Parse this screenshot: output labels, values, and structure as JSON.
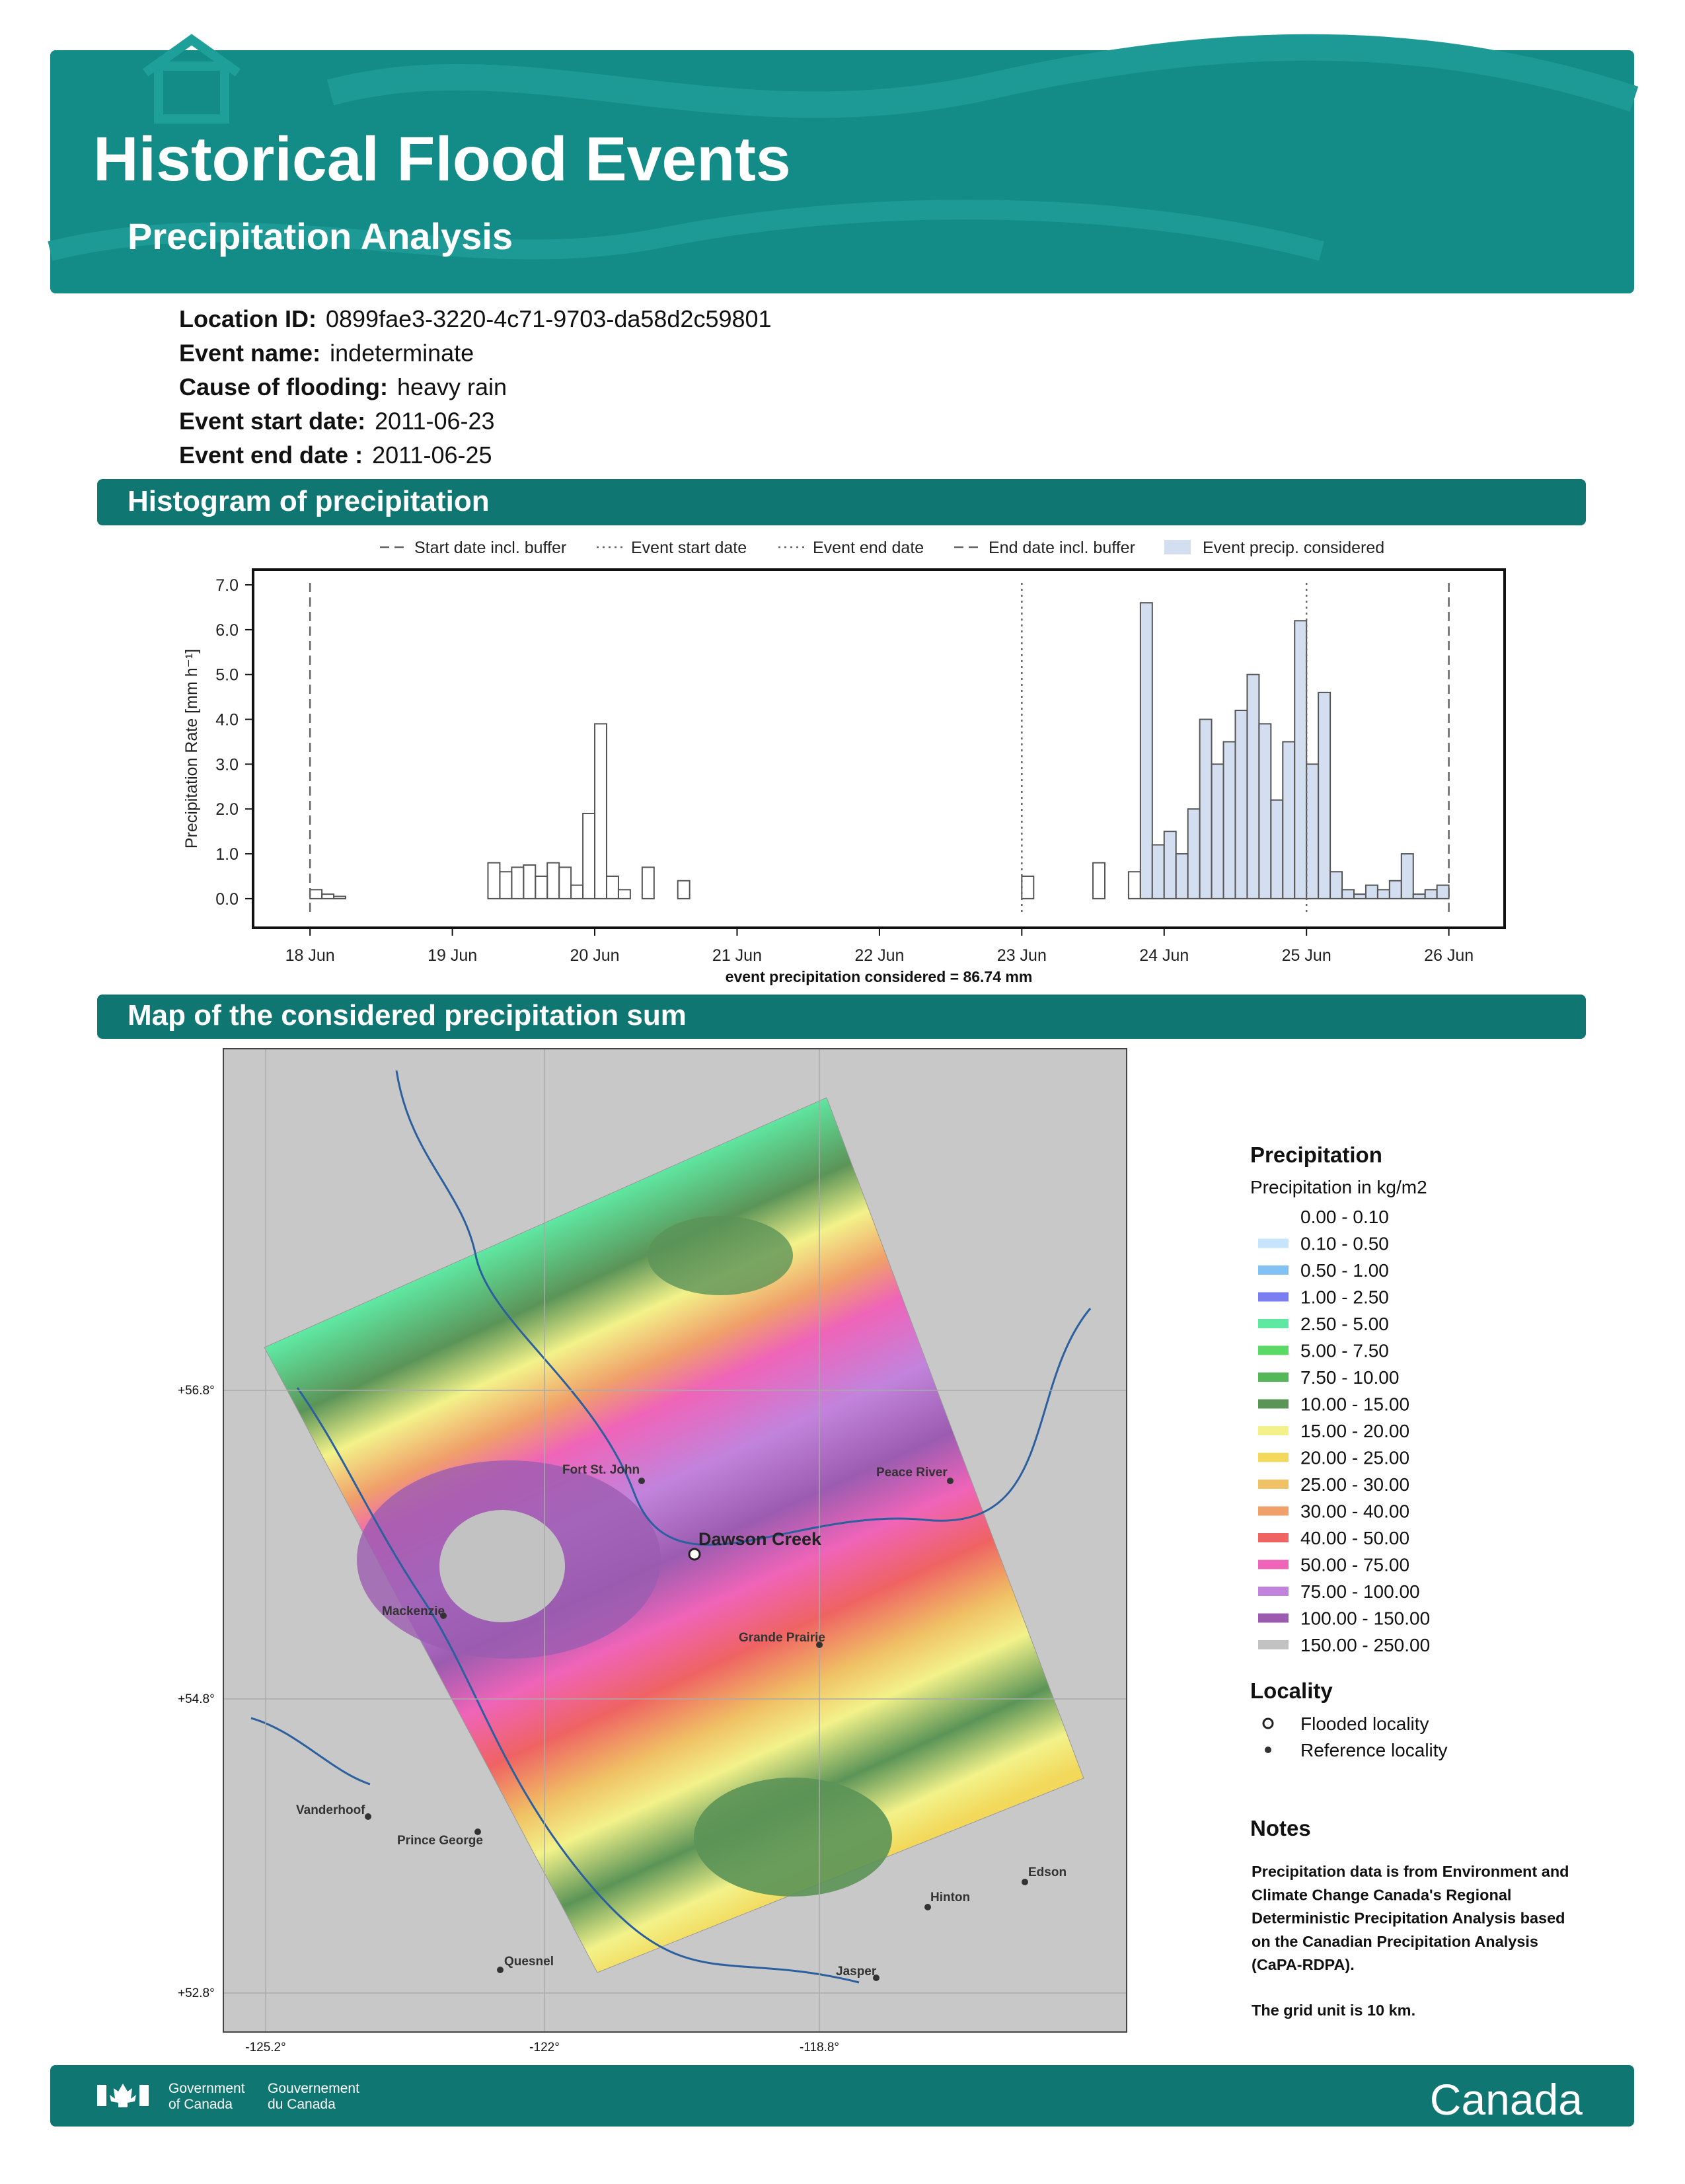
{
  "header": {
    "title": "Historical Flood Events",
    "subtitle": "Precipitation Analysis"
  },
  "info": [
    {
      "label": "Location ID:",
      "value": "0899fae3-3220-4c71-9703-da58d2c59801"
    },
    {
      "label": "Event name:",
      "value": "indeterminate"
    },
    {
      "label": "Cause of flooding:",
      "value": "heavy rain"
    },
    {
      "label": "Event start date:",
      "value": "2011-06-23"
    },
    {
      "label": "Event end date :",
      "value": "2011-06-25"
    }
  ],
  "sections": [
    "Histogram of precipitation",
    "Map of the considered precipitation sum"
  ],
  "chart_data": {
    "type": "histogram",
    "y_label": "Precipitation Rate [mm h⁻¹]",
    "x_label": "event precipitation considered = 86.74 mm",
    "bins": [
      0,
      2,
      4,
      6,
      8,
      10,
      12,
      14,
      16,
      18,
      20,
      22,
      24,
      26,
      28,
      30,
      32,
      34,
      36,
      38,
      40,
      42,
      44,
      46,
      48,
      50,
      52,
      54,
      56,
      58,
      60,
      62,
      64,
      66,
      68,
      70,
      72,
      74,
      76,
      78,
      80,
      82,
      84,
      86,
      88,
      90,
      92,
      94,
      96,
      98,
      100,
      102,
      104,
      106,
      108,
      110,
      112,
      114,
      116,
      118,
      120,
      122,
      124,
      126,
      128,
      130,
      132,
      134,
      136,
      138,
      140,
      142,
      144,
      146,
      148,
      150,
      152,
      154,
      156,
      158,
      160,
      162,
      164,
      166,
      168,
      170,
      172,
      174,
      176,
      178,
      180,
      182,
      184,
      186,
      188,
      190,
      192
    ],
    "counts": [
      0.2,
      0.1,
      0.05,
      0,
      0,
      0,
      0,
      0,
      0,
      0,
      0,
      0,
      0,
      0,
      0,
      0.8,
      0.6,
      0.7,
      0.75,
      0.5,
      0.8,
      0.7,
      0.3,
      1.9,
      3.9,
      0.5,
      0.2,
      0,
      0.7,
      0,
      0,
      0.4,
      0,
      0,
      0,
      0,
      0,
      0,
      0,
      0,
      0,
      0,
      0,
      0,
      0,
      0,
      0,
      0,
      0,
      0,
      0,
      0,
      0,
      0,
      0,
      0,
      0,
      0,
      0,
      0,
      0.5,
      0,
      0,
      0,
      0,
      0,
      0.8,
      0,
      0,
      0.6,
      6.6,
      1.2,
      1.5,
      1.0,
      2.0,
      4.0,
      3.0,
      3.5,
      4.2,
      5.0,
      3.9,
      2.2,
      3.5,
      6.2,
      3.0,
      4.6,
      0.6,
      0.2,
      0.1,
      0.3,
      0.2,
      0.4,
      1.0,
      0.1,
      0.2,
      0.3
    ],
    "color": "#555555",
    "xlim": [
      -9.6,
      201.4
    ],
    "ylim": [
      -0.65,
      7.34
    ],
    "xticks": [
      {
        "value": 0,
        "label": "18 Jun"
      },
      {
        "value": 24,
        "label": "19 Jun"
      },
      {
        "value": 48,
        "label": "20 Jun"
      },
      {
        "value": 72,
        "label": "21 Jun"
      },
      {
        "value": 96,
        "label": "22 Jun"
      },
      {
        "value": 120,
        "label": "23 Jun"
      },
      {
        "value": 144,
        "label": "24 Jun"
      },
      {
        "value": 168,
        "label": "25 Jun"
      },
      {
        "value": 192,
        "label": "26 Jun"
      }
    ],
    "yticks": [
      {
        "value": 0,
        "label": "0.0"
      },
      {
        "value": 1,
        "label": "1.0"
      },
      {
        "value": 2,
        "label": "2.0"
      },
      {
        "value": 3,
        "label": "3.0"
      },
      {
        "value": 4,
        "label": "4.0"
      },
      {
        "value": 5,
        "label": "5.0"
      },
      {
        "value": 6,
        "label": "6.0"
      },
      {
        "value": 7,
        "label": "7.0"
      }
    ],
    "vlines": [
      {
        "name": "Start date incl. buffer",
        "x": 0,
        "dash": "dashed"
      },
      {
        "name": "Event start date",
        "x": 120,
        "dash": "dotted"
      },
      {
        "name": "Event end date",
        "x": 168,
        "dash": "dotted"
      },
      {
        "name": "End date incl. buffer",
        "x": 192,
        "dash": "dashed"
      }
    ],
    "highlight": {
      "name": "Event precip. considered",
      "from": 140,
      "to": 192,
      "color": "#d3def0"
    },
    "legend": "top"
  },
  "map": {
    "lat_labels": [
      "+56.8°",
      "+54.8°",
      "+52.8°"
    ],
    "lon_labels": [
      "-125.2°",
      "-122°",
      "-118.8°"
    ],
    "flooded": "Dawson Creek",
    "references": [
      "Fort St. John",
      "Peace River",
      "Mackenzie",
      "Grande Prairie",
      "Vanderhoof",
      "Prince George",
      "Edson",
      "Hinton",
      "Quesnel",
      "Jasper"
    ],
    "legend_title": "Precipitation",
    "legend_subtitle": "Precipitation in kg/m2",
    "classes": [
      {
        "label": "0.00 - 0.10",
        "color": "#ffffff"
      },
      {
        "label": "0.10 - 0.50",
        "color": "#c6e4fb"
      },
      {
        "label": "0.50 - 1.00",
        "color": "#82c1f4"
      },
      {
        "label": "1.00 - 2.50",
        "color": "#7a7ef0"
      },
      {
        "label": "2.50 - 5.00",
        "color": "#5fe8a2"
      },
      {
        "label": "5.00 - 7.50",
        "color": "#5bd966"
      },
      {
        "label": "7.50 - 10.00",
        "color": "#55b858"
      },
      {
        "label": "10.00 - 15.00",
        "color": "#5b9457"
      },
      {
        "label": "15.00 - 20.00",
        "color": "#f3f28a"
      },
      {
        "label": "20.00 - 25.00",
        "color": "#f2d95c"
      },
      {
        "label": "25.00 - 30.00",
        "color": "#f0c165"
      },
      {
        "label": "30.00 - 40.00",
        "color": "#f0a06a"
      },
      {
        "label": "40.00 - 50.00",
        "color": "#ef6363"
      },
      {
        "label": "50.00 - 75.00",
        "color": "#ef64b8"
      },
      {
        "label": "75.00 - 100.00",
        "color": "#c283dc"
      },
      {
        "label": "100.00 - 150.00",
        "color": "#9b5cb0"
      },
      {
        "label": "150.00 - 250.00",
        "color": "#c2c2c2"
      }
    ],
    "locality_title": "Locality",
    "locality_items": [
      "Flooded locality",
      "Reference locality"
    ]
  },
  "notes": {
    "title": "Notes",
    "lines": [
      "Precipitation data is from Environment and",
      "Climate Change Canada's Regional",
      "Deterministic Precipitation Analysis based",
      "on the Canadian Precipitation Analysis",
      "(CaPA-RDPA)."
    ],
    "grid": "The grid unit is 10 km."
  },
  "footer": {
    "gov_en": [
      "Government",
      "of Canada"
    ],
    "gov_fr": [
      "Gouvernement",
      "du Canada"
    ],
    "wordmark": "Canada"
  }
}
